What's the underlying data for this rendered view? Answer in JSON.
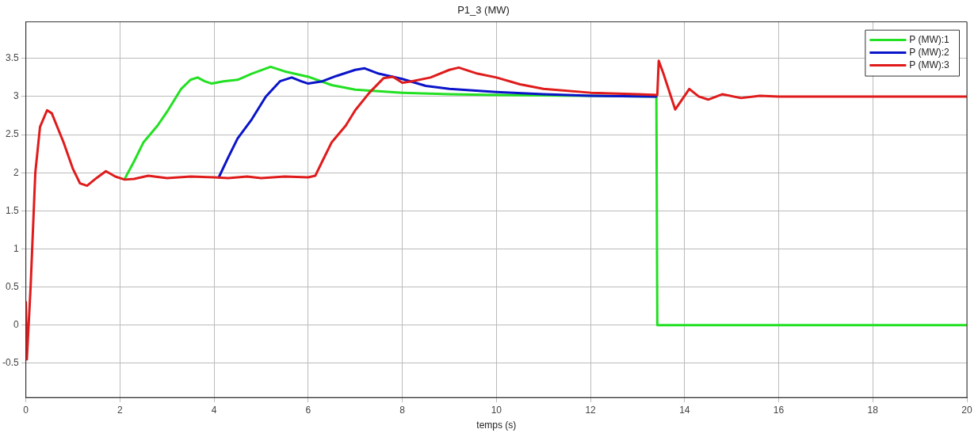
{
  "chart_data": {
    "type": "line",
    "title": "P1_3 (MW)",
    "xlabel": "temps (s)",
    "xlim": [
      0,
      20
    ],
    "xticks": [
      0,
      2,
      4,
      6,
      8,
      10,
      12,
      14,
      16,
      18,
      20
    ],
    "ylim": [
      -0.95,
      3.98
    ],
    "yticks": [
      -0.5,
      0,
      0.5,
      1,
      1.5,
      2,
      2.5,
      3,
      3.5
    ],
    "grid": true,
    "legend": "top right",
    "marker": "none",
    "line_style": "solid",
    "series": [
      {
        "name": "P (MW):1",
        "color": "#22e022",
        "x": [
          2.1,
          2.3,
          2.5,
          2.8,
          3.0,
          3.3,
          3.5,
          3.65,
          3.8,
          3.95,
          4.2,
          4.5,
          4.8,
          5.2,
          5.5,
          6.0,
          6.5,
          7.0,
          8,
          9,
          10,
          13.4,
          13.42,
          20
        ],
        "values": [
          1.92,
          2.15,
          2.4,
          2.62,
          2.8,
          3.1,
          3.22,
          3.25,
          3.2,
          3.17,
          3.2,
          3.22,
          3.3,
          3.39,
          3.33,
          3.26,
          3.15,
          3.09,
          3.05,
          3.03,
          3.02,
          3.0,
          0,
          0
        ]
      },
      {
        "name": "P (MW):2",
        "color": "#0a14c8",
        "x": [
          4.1,
          4.3,
          4.5,
          4.8,
          5.1,
          5.4,
          5.65,
          5.85,
          6.0,
          6.3,
          6.6,
          7.0,
          7.2,
          7.5,
          8,
          8.5,
          9,
          10,
          11,
          12,
          13.4
        ],
        "values": [
          1.94,
          2.2,
          2.45,
          2.7,
          3.0,
          3.2,
          3.25,
          3.2,
          3.17,
          3.2,
          3.27,
          3.35,
          3.37,
          3.3,
          3.23,
          3.14,
          3.1,
          3.06,
          3.03,
          3.01,
          3.0
        ]
      },
      {
        "name": "P (MW):3",
        "color": "#e01b1b",
        "x": [
          0,
          0.02,
          0.1,
          0.2,
          0.3,
          0.45,
          0.55,
          0.8,
          1.0,
          1.15,
          1.3,
          1.5,
          1.7,
          1.9,
          2.1,
          2.3,
          2.6,
          3.0,
          3.5,
          4.0,
          4.3,
          4.7,
          5.0,
          5.5,
          6.0,
          6.15,
          6.3,
          6.5,
          6.8,
          7.0,
          7.3,
          7.6,
          7.8,
          8.0,
          8.2,
          8.6,
          9.0,
          9.2,
          9.6,
          10,
          10.5,
          11,
          12,
          13,
          13.42,
          13.45,
          13.55,
          13.8,
          14.1,
          14.3,
          14.5,
          14.8,
          15.2,
          15.6,
          16,
          20
        ],
        "values": [
          0.3,
          -0.45,
          0.5,
          2.0,
          2.6,
          2.82,
          2.78,
          2.4,
          2.05,
          1.86,
          1.83,
          1.93,
          2.02,
          1.95,
          1.91,
          1.92,
          1.96,
          1.93,
          1.95,
          1.94,
          1.93,
          1.95,
          1.93,
          1.95,
          1.94,
          1.96,
          2.15,
          2.4,
          2.62,
          2.82,
          3.05,
          3.24,
          3.26,
          3.18,
          3.2,
          3.25,
          3.35,
          3.38,
          3.3,
          3.25,
          3.16,
          3.1,
          3.05,
          3.03,
          3.02,
          3.47,
          3.3,
          2.83,
          3.1,
          3.0,
          2.96,
          3.03,
          2.98,
          3.01,
          3.0,
          3.0
        ]
      }
    ]
  }
}
